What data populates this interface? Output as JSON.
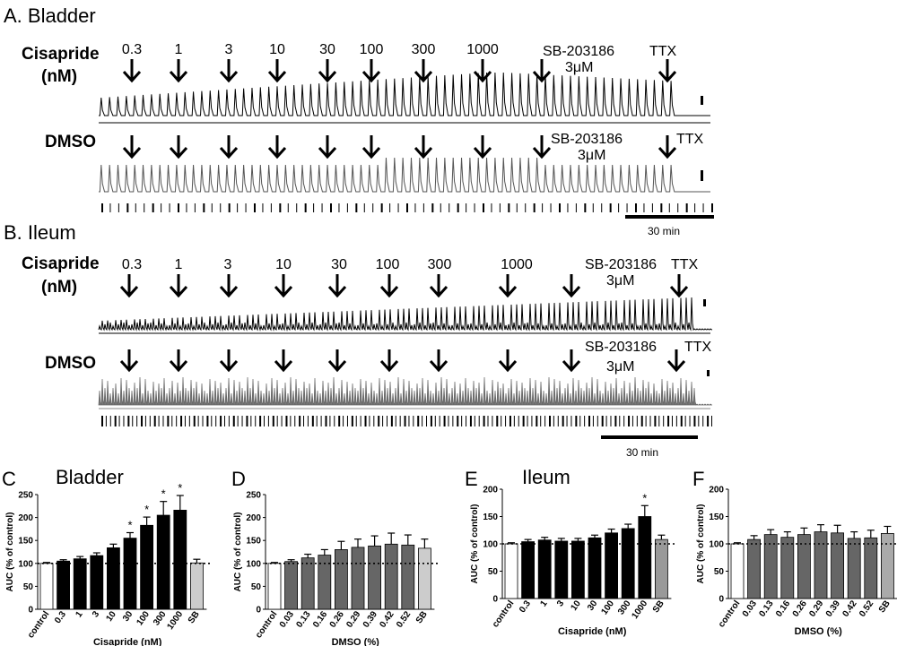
{
  "panelA": {
    "title": "A. Bladder",
    "rows": [
      {
        "label1": "Cisapride",
        "label2": "(nM)",
        "doses": [
          "0.3",
          "1",
          "3",
          "10",
          "30",
          "100",
          "300",
          "1000"
        ],
        "sb1": "SB-203186",
        "sb2": "3μM",
        "ttx": "TTX"
      },
      {
        "label1": "DMSO",
        "label2": "",
        "doses": [],
        "sb1": "SB-203186",
        "sb2": "3μM",
        "ttx": "TTX"
      }
    ],
    "scalebar": "30 min"
  },
  "panelB": {
    "title": "B. Ileum",
    "rows": [
      {
        "label1": "Cisapride",
        "label2": "(nM)",
        "doses": [
          "0.3",
          "1",
          "3",
          "10",
          "30",
          "100",
          "300",
          "1000"
        ],
        "sb1": "SB-203186",
        "sb2": "3μM",
        "ttx": "TTX"
      },
      {
        "label1": "DMSO",
        "label2": "",
        "doses": [],
        "sb1": "SB-203186",
        "sb2": "3μM",
        "ttx": "TTX"
      }
    ],
    "scalebar": "30 min"
  },
  "chart_data": [
    {
      "type": "bar",
      "panel": "C",
      "title": "Bladder",
      "ylabel": "AUC (% of control)",
      "xlabel": "Cisapride (nM)",
      "ylim": [
        0,
        250
      ],
      "yticks": [
        0,
        50,
        100,
        150,
        200,
        250
      ],
      "categories": [
        "control",
        "0.3",
        "1",
        "3",
        "10",
        "30",
        "100",
        "300",
        "1000",
        "SB"
      ],
      "values": [
        100,
        105,
        110,
        117,
        134,
        155,
        183,
        205,
        216,
        101
      ],
      "errors": [
        2,
        3,
        5,
        6,
        8,
        12,
        18,
        30,
        32,
        8
      ],
      "significant": [
        "",
        "",
        "",
        "",
        "",
        "*",
        "*",
        "*",
        "*",
        ""
      ],
      "fills": [
        "#ffffff",
        "#000000",
        "#000000",
        "#000000",
        "#000000",
        "#000000",
        "#000000",
        "#000000",
        "#000000",
        "#cccccc"
      ],
      "reference_line": 100
    },
    {
      "type": "bar",
      "panel": "D",
      "title": "",
      "ylabel": "AUC (% of control)",
      "xlabel": "DMSO (%)",
      "ylim": [
        0,
        250
      ],
      "yticks": [
        0,
        50,
        100,
        150,
        200,
        250
      ],
      "categories": [
        "control",
        "0.03",
        "0.13",
        "0.16",
        "0.26",
        "0.29",
        "0.39",
        "0.42",
        "0.52",
        "SB"
      ],
      "values": [
        100,
        104,
        112,
        118,
        130,
        135,
        138,
        142,
        140,
        133
      ],
      "errors": [
        2,
        4,
        8,
        12,
        18,
        18,
        22,
        24,
        22,
        20
      ],
      "significant": [
        "",
        "",
        "",
        "",
        "",
        "",
        "",
        "",
        "",
        ""
      ],
      "fills": [
        "#ffffff",
        "#666666",
        "#666666",
        "#666666",
        "#666666",
        "#666666",
        "#666666",
        "#666666",
        "#666666",
        "#cccccc"
      ],
      "reference_line": 100
    },
    {
      "type": "bar",
      "panel": "E",
      "title": "Ileum",
      "ylabel": "AUC (% of control)",
      "xlabel": "Cisapride (nM)",
      "ylim": [
        0,
        200
      ],
      "yticks": [
        0,
        50,
        100,
        150,
        200
      ],
      "categories": [
        "control",
        "0.3",
        "1",
        "3",
        "10",
        "30",
        "100",
        "300",
        "1000",
        "SB"
      ],
      "values": [
        100,
        104,
        107,
        105,
        105,
        111,
        120,
        128,
        150,
        108
      ],
      "errors": [
        2,
        4,
        5,
        5,
        5,
        5,
        7,
        8,
        20,
        8
      ],
      "significant": [
        "",
        "",
        "",
        "",
        "",
        "",
        "",
        "",
        "*",
        ""
      ],
      "fills": [
        "#ffffff",
        "#000000",
        "#000000",
        "#000000",
        "#000000",
        "#000000",
        "#000000",
        "#000000",
        "#000000",
        "#999999"
      ],
      "reference_line": 100
    },
    {
      "type": "bar",
      "panel": "F",
      "title": "",
      "ylabel": "AUC (% of control)",
      "xlabel": "DMSO (%)",
      "ylim": [
        0,
        200
      ],
      "yticks": [
        0,
        50,
        100,
        150,
        200
      ],
      "categories": [
        "control",
        "0.03",
        "0.13",
        "0.16",
        "0.26",
        "0.29",
        "0.39",
        "0.42",
        "0.52",
        "SB"
      ],
      "values": [
        100,
        108,
        117,
        112,
        117,
        122,
        120,
        110,
        111,
        119
      ],
      "errors": [
        2,
        7,
        9,
        10,
        12,
        13,
        14,
        12,
        14,
        13
      ],
      "significant": [
        "",
        "",
        "",
        "",
        "",
        "",
        "",
        "",
        "",
        ""
      ],
      "fills": [
        "#ffffff",
        "#666666",
        "#666666",
        "#666666",
        "#666666",
        "#666666",
        "#666666",
        "#666666",
        "#666666",
        "#aaaaaa"
      ],
      "reference_line": 100
    }
  ]
}
